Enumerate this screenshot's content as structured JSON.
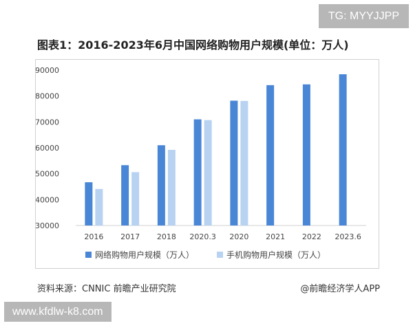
{
  "watermark_top_right": "TG: MYYJJPP",
  "title": "图表1：2016-2023年6月中国网络购物用户规模(单位：万人)",
  "source": "资料来源：CNNIC 前瞻产业研究院",
  "credit": "@前瞻经济学人APP",
  "watermark_bottom_left": "www.kfdlw-k8.com",
  "chart_data": {
    "type": "bar",
    "categories": [
      "2016",
      "2017",
      "2018",
      "2020.3",
      "2020",
      "2021",
      "2022",
      "2023.6"
    ],
    "series": [
      {
        "name": "网络购物用户规模（万人）",
        "color": "#4a86d6",
        "values": [
          46700,
          53300,
          61000,
          71000,
          78200,
          84200,
          84500,
          88400
        ]
      },
      {
        "name": "手机购物用户规模（万人）",
        "color": "#b8d2f2",
        "values": [
          44100,
          50600,
          59200,
          70700,
          78100,
          null,
          null,
          null
        ]
      }
    ],
    "yticks": [
      30000,
      40000,
      50000,
      60000,
      70000,
      80000,
      90000
    ],
    "ylim": [
      30000,
      90000
    ],
    "grid": false,
    "legend_position": "bottom"
  }
}
